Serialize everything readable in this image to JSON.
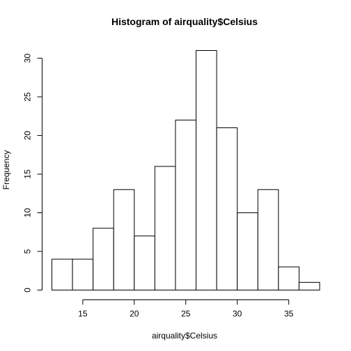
{
  "chart_data": {
    "type": "bar",
    "title": "Histogram of airquality$Celsius",
    "xlabel": "airquality$Celsius",
    "ylabel": "Frequency",
    "bins": [
      {
        "from": 12,
        "to": 14,
        "count": 4
      },
      {
        "from": 14,
        "to": 16,
        "count": 4
      },
      {
        "from": 16,
        "to": 18,
        "count": 8
      },
      {
        "from": 18,
        "to": 20,
        "count": 13
      },
      {
        "from": 20,
        "to": 22,
        "count": 7
      },
      {
        "from": 22,
        "to": 24,
        "count": 16
      },
      {
        "from": 24,
        "to": 26,
        "count": 22
      },
      {
        "from": 26,
        "to": 28,
        "count": 31
      },
      {
        "from": 28,
        "to": 30,
        "count": 21
      },
      {
        "from": 30,
        "to": 32,
        "count": 10
      },
      {
        "from": 32,
        "to": 34,
        "count": 13
      },
      {
        "from": 34,
        "to": 36,
        "count": 3
      },
      {
        "from": 36,
        "to": 38,
        "count": 1
      }
    ],
    "xlim": [
      12,
      38
    ],
    "ylim": [
      0,
      31
    ],
    "xticks": [
      15,
      20,
      25,
      30,
      35
    ],
    "yticks": [
      0,
      5,
      10,
      15,
      20,
      25,
      30
    ],
    "xtick_labels": [
      "15",
      "20",
      "25",
      "30",
      "35"
    ],
    "ytick_labels": [
      "0",
      "5",
      "10",
      "15",
      "20",
      "25",
      "30"
    ],
    "grid": false,
    "bar_fill": "#ffffff",
    "bar_stroke": "#000000"
  }
}
